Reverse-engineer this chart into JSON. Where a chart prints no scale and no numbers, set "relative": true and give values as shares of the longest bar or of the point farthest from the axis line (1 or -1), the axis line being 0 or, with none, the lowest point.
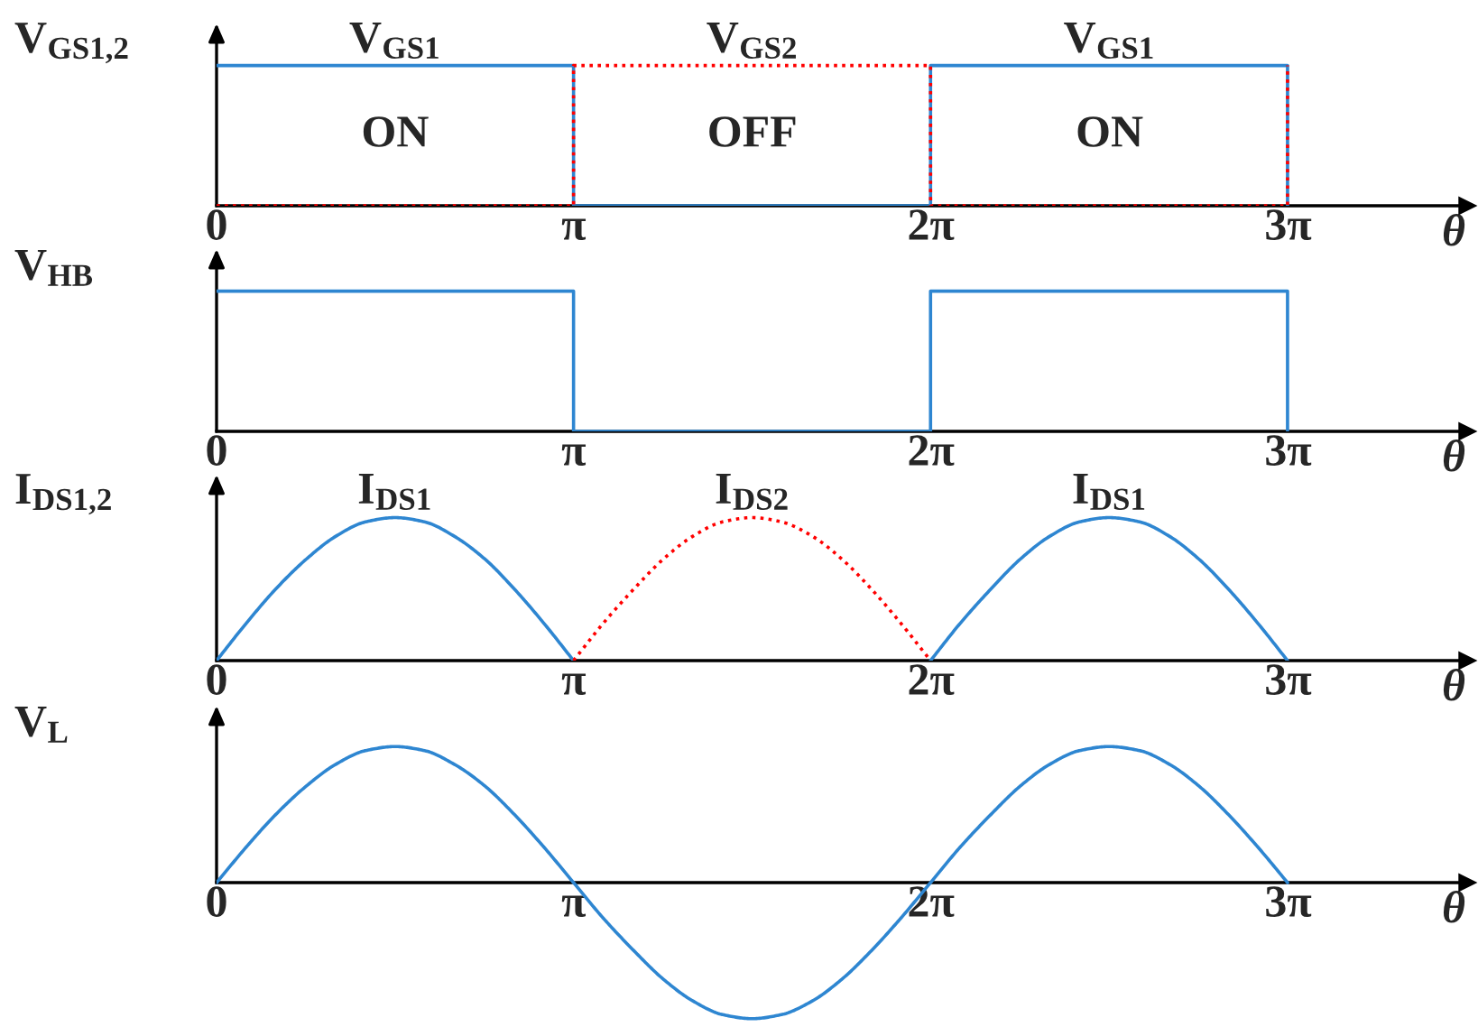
{
  "chart_data": [
    {
      "type": "step",
      "ylabel": "V$_{GS1,2}$",
      "xlabel": "θ",
      "relative": true,
      "xlim": [
        0,
        11
      ],
      "xticks": [
        0,
        {
          "value": 3.1416,
          "label": "π"
        },
        {
          "value": 6.2832,
          "label": "2π"
        },
        {
          "value": 9.4248,
          "label": "3π"
        }
      ],
      "x": [
        0,
        3.14,
        6.28,
        9.42
      ],
      "series": [
        {
          "color": "#2e86d1",
          "values": [
            1,
            0,
            1,
            0
          ]
        },
        {
          "color": "#ff0000",
          "line_style": "dotted",
          "values": [
            0,
            1,
            0,
            1
          ]
        }
      ],
      "annotations": [
        "V$_{GS1}$",
        "V$_{GS2}$",
        "V$_{GS1}$",
        "ON",
        "OFF",
        "ON"
      ]
    },
    {
      "type": "step",
      "ylabel": "V$_{HB}$",
      "xlabel": "θ",
      "relative": true,
      "xlim": [
        0,
        11
      ],
      "xticks": [
        0,
        {
          "value": 3.1416,
          "label": "π"
        },
        {
          "value": 6.2832,
          "label": "2π"
        },
        {
          "value": 9.4248,
          "label": "3π"
        }
      ],
      "x": [
        0,
        3.14,
        6.28,
        9.42
      ],
      "series": [
        {
          "color": "#2e86d1",
          "values": [
            1,
            0,
            1,
            0
          ]
        }
      ]
    },
    {
      "type": "line",
      "ylabel": "I$_{DS1,2}$",
      "xlabel": "θ",
      "relative": true,
      "xlim": [
        0,
        11
      ],
      "xticks": [
        0,
        {
          "value": 3.1416,
          "label": "π"
        },
        {
          "value": 6.2832,
          "label": "2π"
        },
        {
          "value": 9.4248,
          "label": "3π"
        }
      ],
      "series": [
        {
          "color": "#2e86d1",
          "x": [
            0,
            0.26,
            0.52,
            0.79,
            1.05,
            1.31,
            1.57,
            1.83,
            2.09,
            2.36,
            2.62,
            2.88,
            3.14,
            4.71,
            6.28,
            6.54,
            6.81,
            7.07,
            7.33,
            7.59,
            7.85,
            8.12,
            8.38,
            8.64,
            8.9,
            9.16,
            9.42
          ],
          "values": [
            0,
            0.26,
            0.5,
            0.71,
            0.87,
            0.97,
            1,
            0.97,
            0.87,
            0.71,
            0.5,
            0.26,
            0,
            null,
            0,
            0.26,
            0.5,
            0.71,
            0.87,
            0.97,
            1,
            0.97,
            0.87,
            0.71,
            0.5,
            0.26,
            0
          ]
        },
        {
          "color": "#ff0000",
          "line_style": "dotted",
          "x": [
            3.14,
            3.4,
            3.67,
            3.93,
            4.19,
            4.45,
            4.71,
            4.97,
            5.24,
            5.5,
            5.76,
            6.02,
            6.28
          ],
          "values": [
            0,
            0.26,
            0.5,
            0.71,
            0.87,
            0.97,
            1,
            0.97,
            0.87,
            0.71,
            0.5,
            0.26,
            0
          ]
        }
      ],
      "annotations": [
        "I$_{DS1}$",
        "I$_{DS2}$",
        "I$_{DS1}$"
      ]
    },
    {
      "type": "line",
      "ylabel": "V$_{L}$",
      "xlabel": "θ",
      "relative": true,
      "xlim": [
        0,
        11
      ],
      "xticks": [
        0,
        {
          "value": 3.1416,
          "label": "π"
        },
        {
          "value": 6.2832,
          "label": "2π"
        },
        {
          "value": 9.4248,
          "label": "3π"
        }
      ],
      "x": [
        0,
        0.26,
        0.52,
        0.79,
        1.05,
        1.31,
        1.57,
        1.83,
        2.09,
        2.36,
        2.62,
        2.88,
        3.14,
        3.4,
        3.67,
        3.93,
        4.19,
        4.45,
        4.71,
        4.97,
        5.24,
        5.5,
        5.76,
        6.02,
        6.28,
        6.54,
        6.81,
        7.07,
        7.33,
        7.59,
        7.85,
        8.12,
        8.38,
        8.64,
        8.9,
        9.16,
        9.42
      ],
      "series": [
        {
          "color": "#2e86d1",
          "values": [
            0,
            0.26,
            0.5,
            0.71,
            0.87,
            0.97,
            1,
            0.97,
            0.87,
            0.71,
            0.5,
            0.26,
            0,
            -0.26,
            -0.5,
            -0.71,
            -0.87,
            -0.97,
            -1,
            -0.97,
            -0.87,
            -0.71,
            -0.5,
            -0.26,
            0,
            0.26,
            0.5,
            0.71,
            0.87,
            0.97,
            1,
            0.97,
            0.87,
            0.71,
            0.5,
            0.26,
            0
          ]
        }
      ]
    }
  ]
}
